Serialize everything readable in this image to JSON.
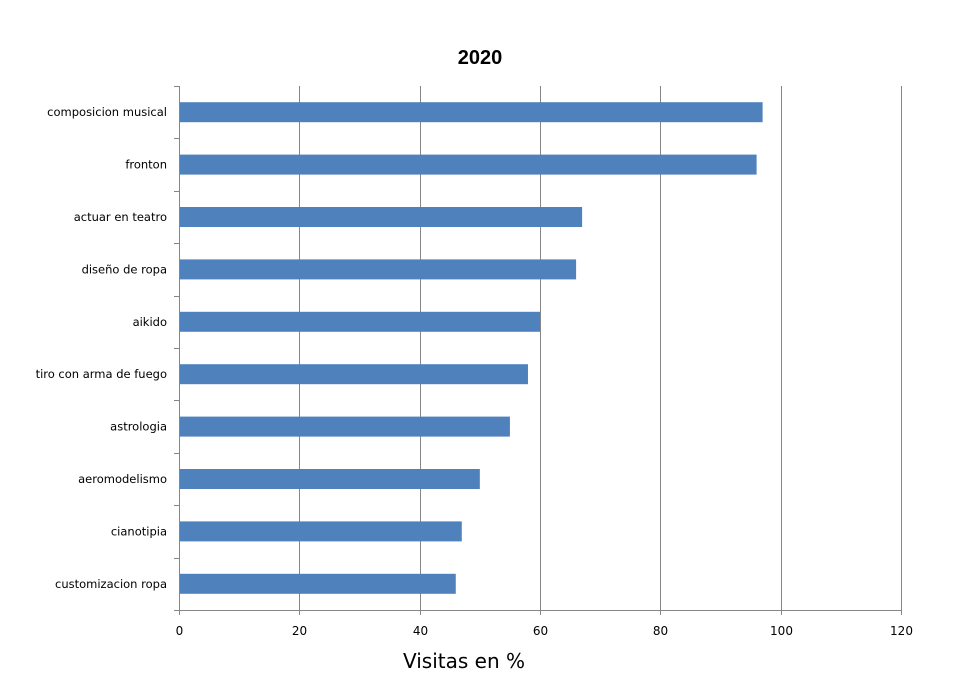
{
  "chart_data": {
    "type": "bar",
    "orientation": "horizontal",
    "title": "2020",
    "xlabel": "Visitas en %",
    "ylabel": "",
    "categories": [
      "composicion musical",
      "fronton",
      "actuar en teatro",
      "diseño de ropa",
      "aikido",
      "tiro con arma de fuego",
      "astrologia",
      "aeromodelismo",
      "cianotipia",
      "customizacion ropa"
    ],
    "values": [
      97,
      96,
      67,
      66,
      60,
      58,
      55,
      50,
      47,
      46
    ],
    "xlim": [
      0,
      120
    ],
    "xticks": [
      "0",
      "20",
      "40",
      "60",
      "80",
      "100",
      "120"
    ],
    "grid": "vertical major gridlines",
    "legend": "none",
    "bar_color": "#4f81bd"
  }
}
